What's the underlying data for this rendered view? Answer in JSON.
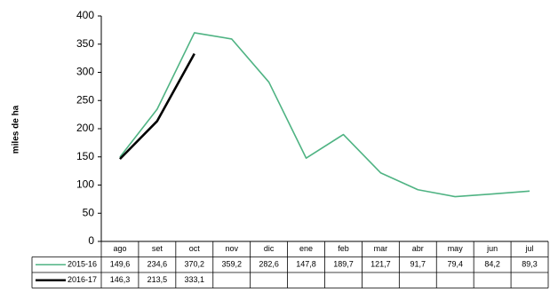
{
  "chart_data": {
    "type": "line",
    "y_label": "miles de ha",
    "categories": [
      "ago",
      "set",
      "oct",
      "nov",
      "dic",
      "ene",
      "feb",
      "mar",
      "abr",
      "may",
      "jun",
      "jul"
    ],
    "series": [
      {
        "name": "2015-16",
        "color": "#4fb383",
        "width": 1.6,
        "values": [
          149.6,
          234.6,
          370.2,
          359.2,
          282.6,
          147.8,
          189.7,
          121.7,
          91.7,
          79.4,
          84.2,
          89.3
        ],
        "value_labels": [
          "149,6",
          "234,6",
          "370,2",
          "359,2",
          "282,6",
          "147,8",
          "189,7",
          "121,7",
          "91,7",
          "79,4",
          "84,2",
          "89,3"
        ]
      },
      {
        "name": "2016-17",
        "color": "#000000",
        "width": 2.6,
        "values": [
          146.3,
          213.5,
          333.1,
          null,
          null,
          null,
          null,
          null,
          null,
          null,
          null,
          null
        ],
        "value_labels": [
          "146,3",
          "213,5",
          "333,1",
          null,
          null,
          null,
          null,
          null,
          null,
          null,
          null,
          null
        ]
      }
    ],
    "ylim": [
      0,
      400
    ],
    "yticks": [
      0,
      50,
      100,
      150,
      200,
      250,
      300,
      350,
      400
    ]
  }
}
